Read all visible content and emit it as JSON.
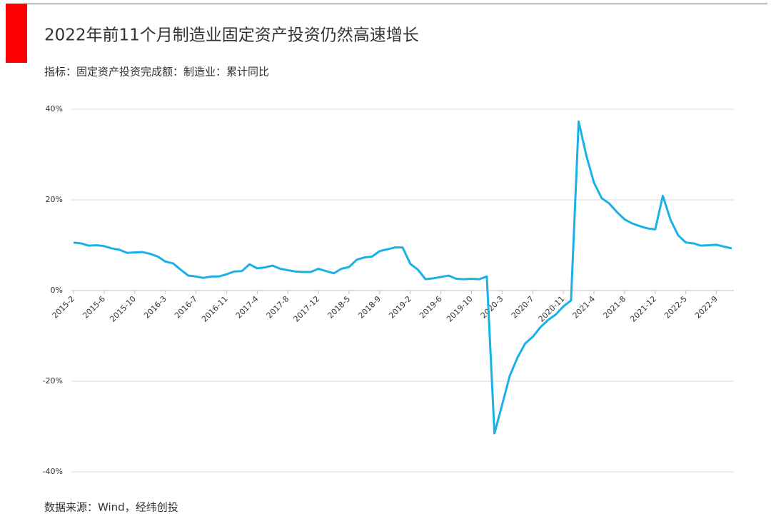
{
  "chart_data": {
    "type": "line",
    "title": "2022年前11个月制造业固定资产投资仍然高速增长",
    "subtitle": "指标：固定资产投资完成额：制造业：累计同比",
    "source": "数据来源：Wind，经纬创投",
    "color": "#1ab0e8",
    "categories": [
      "2015-2",
      null,
      null,
      null,
      "2015-6",
      null,
      null,
      null,
      "2015-10",
      null,
      null,
      null,
      "2016-3",
      null,
      null,
      null,
      "2016-7",
      null,
      null,
      null,
      "2016-11",
      null,
      null,
      null,
      "2017-4",
      null,
      null,
      null,
      "2017-8",
      null,
      null,
      null,
      "2017-12",
      null,
      null,
      null,
      "2018-5",
      null,
      null,
      null,
      "2018-9",
      null,
      null,
      null,
      "2019-2",
      null,
      null,
      null,
      "2019-6",
      null,
      null,
      null,
      "2019-10",
      null,
      null,
      null,
      "2020-3",
      null,
      null,
      null,
      "2020-7",
      null,
      null,
      null,
      "2020-11",
      null,
      null,
      null,
      "2021-4",
      null,
      null,
      null,
      "2021-8",
      null,
      null,
      null,
      "2021-12",
      null,
      null,
      null,
      "2022-5",
      null,
      null,
      null,
      "2022-9",
      null,
      null
    ],
    "values": [
      10.6,
      10.4,
      9.9,
      10.0,
      9.8,
      9.3,
      9.0,
      8.3,
      8.4,
      8.5,
      8.1,
      7.5,
      6.4,
      6.0,
      4.6,
      3.3,
      3.1,
      2.8,
      3.1,
      3.1,
      3.6,
      4.2,
      4.3,
      5.8,
      4.9,
      5.1,
      5.5,
      4.8,
      4.5,
      4.2,
      4.1,
      4.1,
      4.8,
      4.3,
      3.8,
      4.8,
      5.2,
      6.8,
      7.3,
      7.5,
      8.7,
      9.1,
      9.5,
      9.5,
      5.9,
      4.6,
      2.5,
      2.7,
      3.0,
      3.3,
      2.6,
      2.5,
      2.6,
      2.5,
      3.1,
      -31.5,
      -25.2,
      -18.8,
      -14.8,
      -11.7,
      -10.2,
      -8.1,
      -6.5,
      -5.3,
      -3.5,
      -2.2,
      37.3,
      29.8,
      23.8,
      20.4,
      19.2,
      17.3,
      15.7,
      14.8,
      14.2,
      13.7,
      13.5,
      20.9,
      15.6,
      12.2,
      10.6,
      10.4,
      9.9,
      10.0,
      10.1,
      9.7,
      9.3
    ],
    "ylim": [
      -40,
      40
    ],
    "yticks": [
      {
        "value": -40,
        "label": "-40%"
      },
      {
        "value": -20,
        "label": "-20%"
      },
      {
        "value": 0,
        "label": "0%"
      },
      {
        "value": 20,
        "label": "20%"
      },
      {
        "value": 40,
        "label": "40%"
      }
    ],
    "grid": true
  }
}
